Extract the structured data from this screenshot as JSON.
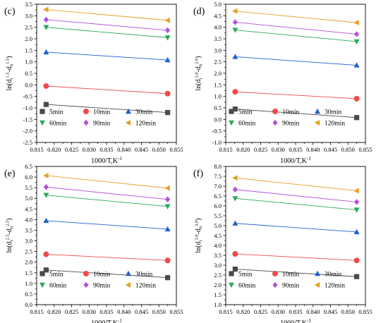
{
  "chart_data": [
    {
      "panel_label": "(c)",
      "type": "scatter",
      "xlabel": "1000/T,K",
      "xlabel_sup": "-1",
      "ylabel": "ln(d",
      "ylabel_parts": [
        "ln(d",
        "t",
        "1.5",
        "-d",
        "0",
        "1.5",
        ")"
      ],
      "xlim": [
        0.815,
        0.855
      ],
      "ylim": [
        -2.5,
        3.5
      ],
      "xticks": [
        "0.815",
        "0.820",
        "0.825",
        "0.830",
        "0.835",
        "0.840",
        "0.845",
        "0.850",
        "0.855"
      ],
      "yticks": [
        "-2.5",
        "-2.0",
        "-1.5",
        "-1.0",
        "-0.5",
        "0.0",
        "0.5",
        "1.0",
        "1.5",
        "2.0",
        "2.5",
        "3.0",
        "3.5"
      ],
      "x": [
        0.8177,
        0.8525
      ],
      "series": [
        {
          "name": "5min",
          "marker": "square",
          "color": "#4a4a4a",
          "values": [
            -0.85,
            -1.2
          ]
        },
        {
          "name": "10min",
          "marker": "circle",
          "color": "#f04a4a",
          "values": [
            -0.05,
            -0.38
          ]
        },
        {
          "name": "30min",
          "marker": "triangle-up",
          "color": "#1f5fd0",
          "values": [
            1.42,
            1.08
          ]
        },
        {
          "name": "60min",
          "marker": "triangle-down",
          "color": "#2aab5a",
          "values": [
            2.5,
            2.05
          ]
        },
        {
          "name": "90min",
          "marker": "diamond",
          "color": "#b44fe0",
          "values": [
            2.83,
            2.37
          ]
        },
        {
          "name": "120min",
          "marker": "triangle-left",
          "color": "#e3a020",
          "values": [
            3.27,
            2.8
          ]
        }
      ]
    },
    {
      "panel_label": "(d)",
      "type": "scatter",
      "xlabel": "1000/T,K",
      "xlabel_sup": "-1",
      "ylabel": "ln(d",
      "ylabel_parts": [
        "ln(d",
        "t",
        "2.0",
        "-d",
        "0",
        "2.0",
        ")"
      ],
      "xlim": [
        0.815,
        0.855
      ],
      "ylim": [
        -1.0,
        5.0
      ],
      "xticks": [
        "0.815",
        "0.820",
        "0.825",
        "0.830",
        "0.835",
        "0.840",
        "0.845",
        "0.850",
        "0.855"
      ],
      "yticks": [
        "-1.0",
        "-0.5",
        "0.0",
        "0.5",
        "1.0",
        "1.5",
        "2.0",
        "2.5",
        "3.0",
        "3.5",
        "4.0",
        "4.5",
        "5.0"
      ],
      "x": [
        0.8177,
        0.8525
      ],
      "series": [
        {
          "name": "5min",
          "marker": "square",
          "color": "#4a4a4a",
          "values": [
            0.45,
            0.08
          ]
        },
        {
          "name": "10min",
          "marker": "circle",
          "color": "#f04a4a",
          "values": [
            1.2,
            0.9
          ]
        },
        {
          "name": "30min",
          "marker": "triangle-up",
          "color": "#1f5fd0",
          "values": [
            2.72,
            2.35
          ]
        },
        {
          "name": "60min",
          "marker": "triangle-down",
          "color": "#2aab5a",
          "values": [
            3.88,
            3.38
          ]
        },
        {
          "name": "90min",
          "marker": "diamond",
          "color": "#b44fe0",
          "values": [
            4.22,
            3.7
          ]
        },
        {
          "name": "120min",
          "marker": "triangle-left",
          "color": "#e3a020",
          "values": [
            4.7,
            4.2
          ]
        }
      ]
    },
    {
      "panel_label": "(e)",
      "type": "scatter",
      "xlabel": "1000/T,K",
      "xlabel_sup": "-1",
      "ylabel": "ln(d",
      "ylabel_parts": [
        "ln(d",
        "t",
        "2.5",
        "-d",
        "0",
        "2.5",
        ")"
      ],
      "xlim": [
        0.815,
        0.855
      ],
      "ylim": [
        0.0,
        6.5
      ],
      "xticks": [
        "0.815",
        "0.820",
        "0.825",
        "0.830",
        "0.835",
        "0.840",
        "0.845",
        "0.850",
        "0.855"
      ],
      "yticks": [
        "0.0",
        "0.5",
        "1.0",
        "1.5",
        "2.0",
        "2.5",
        "3.0",
        "3.5",
        "4.0",
        "4.5",
        "5.0",
        "5.5",
        "6.0",
        "6.5"
      ],
      "x": [
        0.8177,
        0.8525
      ],
      "series": [
        {
          "name": "5min",
          "marker": "square",
          "color": "#4a4a4a",
          "values": [
            1.63,
            1.27
          ]
        },
        {
          "name": "10min",
          "marker": "circle",
          "color": "#f04a4a",
          "values": [
            2.37,
            2.08
          ]
        },
        {
          "name": "30min",
          "marker": "triangle-up",
          "color": "#1f5fd0",
          "values": [
            3.95,
            3.55
          ]
        },
        {
          "name": "60min",
          "marker": "triangle-down",
          "color": "#2aab5a",
          "values": [
            5.15,
            4.62
          ]
        },
        {
          "name": "90min",
          "marker": "diamond",
          "color": "#b44fe0",
          "values": [
            5.53,
            4.95
          ]
        },
        {
          "name": "120min",
          "marker": "triangle-left",
          "color": "#e3a020",
          "values": [
            6.07,
            5.48
          ]
        }
      ]
    },
    {
      "panel_label": "(f)",
      "type": "scatter",
      "xlabel": "1000/T,K",
      "xlabel_sup": "-1",
      "ylabel": "ln(d",
      "ylabel_parts": [
        "ln(d",
        "t",
        "3.0",
        "-d",
        "0",
        "3.0",
        ")"
      ],
      "xlim": [
        0.815,
        0.855
      ],
      "ylim": [
        1.0,
        8.0
      ],
      "xticks": [
        "0.815",
        "0.820",
        "0.825",
        "0.830",
        "0.835",
        "0.840",
        "0.845",
        "0.850",
        "0.855"
      ],
      "yticks": [
        "1.0",
        "1.5",
        "2.0",
        "2.5",
        "3.0",
        "3.5",
        "4.0",
        "4.5",
        "5.0",
        "5.5",
        "6.0",
        "6.5",
        "7.0",
        "7.5",
        "8.0"
      ],
      "x": [
        0.8177,
        0.8525
      ],
      "series": [
        {
          "name": "5min",
          "marker": "square",
          "color": "#4a4a4a",
          "values": [
            2.8,
            2.42
          ]
        },
        {
          "name": "10min",
          "marker": "circle",
          "color": "#f04a4a",
          "values": [
            3.57,
            3.24
          ]
        },
        {
          "name": "30min",
          "marker": "triangle-up",
          "color": "#1f5fd0",
          "values": [
            5.12,
            4.68
          ]
        },
        {
          "name": "60min",
          "marker": "triangle-down",
          "color": "#2aab5a",
          "values": [
            6.38,
            5.8
          ]
        },
        {
          "name": "90min",
          "marker": "diamond",
          "color": "#b44fe0",
          "values": [
            6.83,
            6.2
          ]
        },
        {
          "name": "120min",
          "marker": "triangle-left",
          "color": "#e3a020",
          "values": [
            7.42,
            6.77
          ]
        }
      ]
    }
  ]
}
